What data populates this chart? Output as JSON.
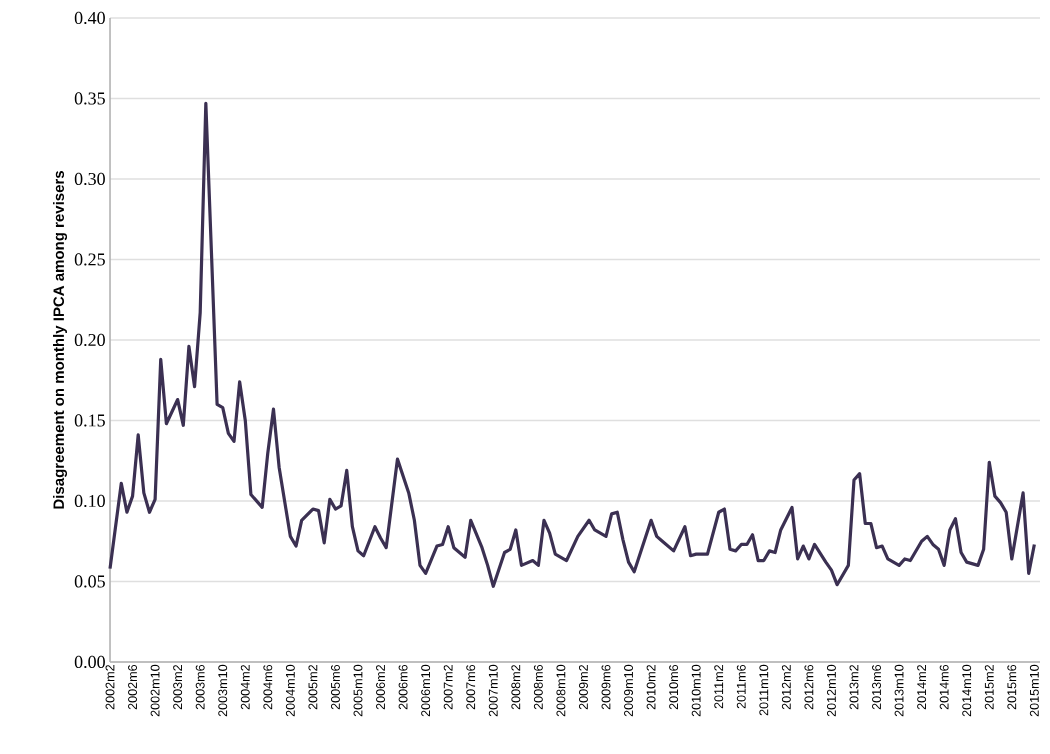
{
  "chart_data": {
    "type": "line",
    "ylabel": "Disagreement on monthly IPCA among revisers",
    "series": [
      {
        "color": "#3b3052",
        "x": [
          "2002-02",
          "2002-04",
          "2002-05",
          "2002-06",
          "2002-07",
          "2002-08",
          "2002-09",
          "2002-10",
          "2002-11",
          "2002-12",
          "2003-02",
          "2003-03",
          "2003-04",
          "2003-05",
          "2003-06",
          "2003-07",
          "2003-08",
          "2003-09",
          "2003-10",
          "2003-11",
          "2003-12",
          "2004-01",
          "2004-02",
          "2004-03",
          "2004-05",
          "2004-06",
          "2004-07",
          "2004-08",
          "2004-10",
          "2004-11",
          "2004-12",
          "2005-02",
          "2005-03",
          "2005-04",
          "2005-05",
          "2005-06",
          "2005-07",
          "2005-08",
          "2005-09",
          "2005-10",
          "2005-11",
          "2006-01",
          "2006-02",
          "2006-03",
          "2006-05",
          "2006-07",
          "2006-08",
          "2006-09",
          "2006-10",
          "2006-12",
          "2007-01",
          "2007-02",
          "2007-03",
          "2007-04",
          "2007-05",
          "2007-06",
          "2007-08",
          "2007-09",
          "2007-10",
          "2007-12",
          "2008-01",
          "2008-02",
          "2008-03",
          "2008-05",
          "2008-06",
          "2008-07",
          "2008-08",
          "2008-09",
          "2008-11",
          "2009-01",
          "2009-03",
          "2009-04",
          "2009-06",
          "2009-07",
          "2009-08",
          "2009-09",
          "2009-10",
          "2009-11",
          "2010-02",
          "2010-03",
          "2010-04",
          "2010-06",
          "2010-08",
          "2010-09",
          "2010-10",
          "2010-12",
          "2011-02",
          "2011-03",
          "2011-04",
          "2011-05",
          "2011-06",
          "2011-07",
          "2011-08",
          "2011-09",
          "2011-10",
          "2011-11",
          "2011-12",
          "2012-01",
          "2012-03",
          "2012-04",
          "2012-05",
          "2012-06",
          "2012-07",
          "2012-09",
          "2012-10",
          "2012-11",
          "2013-01",
          "2013-02",
          "2013-03",
          "2013-04",
          "2013-05",
          "2013-06",
          "2013-07",
          "2013-08",
          "2013-10",
          "2013-11",
          "2013-12",
          "2014-02",
          "2014-03",
          "2014-04",
          "2014-05",
          "2014-06",
          "2014-07",
          "2014-08",
          "2014-09",
          "2014-10",
          "2014-12",
          "2015-01",
          "2015-02",
          "2015-03",
          "2015-04",
          "2015-05",
          "2015-06",
          "2015-08",
          "2015-09",
          "2015-10"
        ],
        "values": [
          0.058,
          0.111,
          0.093,
          0.103,
          0.141,
          0.105,
          0.093,
          0.101,
          0.188,
          0.148,
          0.163,
          0.147,
          0.196,
          0.171,
          0.217,
          0.347,
          0.254,
          0.16,
          0.158,
          0.142,
          0.137,
          0.174,
          0.15,
          0.104,
          0.096,
          0.13,
          0.157,
          0.121,
          0.078,
          0.072,
          0.088,
          0.095,
          0.094,
          0.074,
          0.101,
          0.095,
          0.097,
          0.119,
          0.084,
          0.069,
          0.066,
          0.084,
          0.077,
          0.071,
          0.126,
          0.105,
          0.088,
          0.06,
          0.055,
          0.072,
          0.073,
          0.084,
          0.071,
          0.068,
          0.065,
          0.088,
          0.071,
          0.06,
          0.047,
          0.068,
          0.07,
          0.082,
          0.06,
          0.063,
          0.06,
          0.088,
          0.08,
          0.067,
          0.063,
          0.078,
          0.088,
          0.082,
          0.078,
          0.092,
          0.093,
          0.076,
          0.062,
          0.056,
          0.088,
          0.078,
          0.075,
          0.069,
          0.084,
          0.066,
          0.067,
          0.067,
          0.093,
          0.095,
          0.07,
          0.069,
          0.073,
          0.073,
          0.079,
          0.063,
          0.063,
          0.069,
          0.068,
          0.082,
          0.096,
          0.064,
          0.072,
          0.064,
          0.073,
          0.062,
          0.057,
          0.048,
          0.06,
          0.113,
          0.117,
          0.086,
          0.086,
          0.071,
          0.072,
          0.064,
          0.06,
          0.064,
          0.063,
          0.075,
          0.078,
          0.073,
          0.07,
          0.06,
          0.082,
          0.089,
          0.068,
          0.062,
          0.06,
          0.07,
          0.124,
          0.103,
          0.099,
          0.093,
          0.064,
          0.105,
          0.055,
          0.073
        ]
      }
    ],
    "xlim": [
      "2002-02",
      "2015-11"
    ],
    "xticks": [
      {
        "value": "2002-02",
        "label": "2002m2"
      },
      {
        "value": "2002-06",
        "label": "2002m6"
      },
      {
        "value": "2002-10",
        "label": "2002m10"
      },
      {
        "value": "2003-02",
        "label": "2003m2"
      },
      {
        "value": "2003-06",
        "label": "2003m6"
      },
      {
        "value": "2003-10",
        "label": "2003m10"
      },
      {
        "value": "2004-02",
        "label": "2004m2"
      },
      {
        "value": "2004-06",
        "label": "2004m6"
      },
      {
        "value": "2004-10",
        "label": "2004m10"
      },
      {
        "value": "2005-02",
        "label": "2005m2"
      },
      {
        "value": "2005-06",
        "label": "2005m6"
      },
      {
        "value": "2005-10",
        "label": "2005m10"
      },
      {
        "value": "2006-02",
        "label": "2006m2"
      },
      {
        "value": "2006-06",
        "label": "2006m6"
      },
      {
        "value": "2006-10",
        "label": "2006m10"
      },
      {
        "value": "2007-02",
        "label": "2007m2"
      },
      {
        "value": "2007-06",
        "label": "2007m6"
      },
      {
        "value": "2007-10",
        "label": "2007m10"
      },
      {
        "value": "2008-02",
        "label": "2008m2"
      },
      {
        "value": "2008-06",
        "label": "2008m6"
      },
      {
        "value": "2008-10",
        "label": "2008m10"
      },
      {
        "value": "2009-02",
        "label": "2009m2"
      },
      {
        "value": "2009-06",
        "label": "2009m6"
      },
      {
        "value": "2009-10",
        "label": "2009m10"
      },
      {
        "value": "2010-02",
        "label": "2010m2"
      },
      {
        "value": "2010-06",
        "label": "2010m6"
      },
      {
        "value": "2010-10",
        "label": "2010m10"
      },
      {
        "value": "2011-02",
        "label": "2011m2"
      },
      {
        "value": "2011-06",
        "label": "2011m6"
      },
      {
        "value": "2011-10",
        "label": "2011m10"
      },
      {
        "value": "2012-02",
        "label": "2012m2"
      },
      {
        "value": "2012-06",
        "label": "2012m6"
      },
      {
        "value": "2012-10",
        "label": "2012m10"
      },
      {
        "value": "2013-02",
        "label": "2013m2"
      },
      {
        "value": "2013-06",
        "label": "2013m6"
      },
      {
        "value": "2013-10",
        "label": "2013m10"
      },
      {
        "value": "2014-02",
        "label": "2014m2"
      },
      {
        "value": "2014-06",
        "label": "2014m6"
      },
      {
        "value": "2014-10",
        "label": "2014m10"
      },
      {
        "value": "2015-02",
        "label": "2015m2"
      },
      {
        "value": "2015-06",
        "label": "2015m6"
      },
      {
        "value": "2015-10",
        "label": "2015m10"
      }
    ],
    "ylim": [
      0,
      0.4
    ],
    "yticks": [
      {
        "value": 0,
        "label": "0.00"
      },
      {
        "value": 0.05,
        "label": "0.05"
      },
      {
        "value": 0.1,
        "label": "0.10"
      },
      {
        "value": 0.15,
        "label": "0.15"
      },
      {
        "value": 0.2,
        "label": "0.20"
      },
      {
        "value": 0.25,
        "label": "0.25"
      },
      {
        "value": 0.3,
        "label": "0.30"
      },
      {
        "value": 0.35,
        "label": "0.35"
      },
      {
        "value": 0.4,
        "label": "0.40"
      }
    ],
    "grid": "y",
    "marker": "none",
    "line_style": "solid"
  }
}
